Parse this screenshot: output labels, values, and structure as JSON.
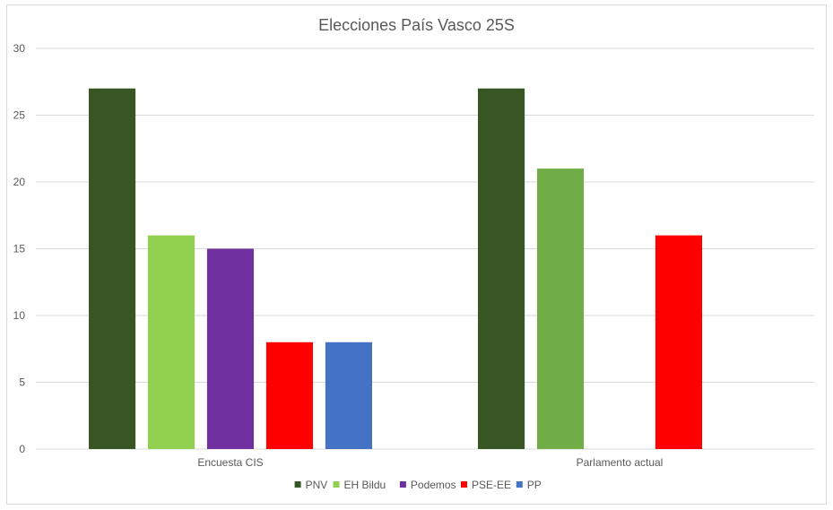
{
  "chart_data": {
    "type": "bar",
    "title": "Elecciones País Vasco 25S",
    "categories": [
      "Encuesta CIS",
      "Parlamento actual"
    ],
    "series": [
      {
        "name": "PNV",
        "color": "#375623",
        "values": [
          27,
          27
        ]
      },
      {
        "name": "EH Bildu",
        "color": "#92d050",
        "values": [
          16,
          null
        ]
      },
      {
        "name": "Podemos",
        "color": "#7030a0",
        "values": [
          15,
          null
        ]
      },
      {
        "name": "PSE-EE",
        "color": "#ff0000",
        "values": [
          8,
          16
        ]
      },
      {
        "name": "PP",
        "color": "#4472c4",
        "values": [
          8,
          null
        ]
      }
    ],
    "overrides": [
      {
        "series": "EH Bildu",
        "category": "Parlamento actual",
        "value": 21,
        "color": "#70ad47"
      }
    ],
    "ylim": [
      0,
      30
    ],
    "yticks": [
      "0",
      "5",
      "10",
      "15",
      "20",
      "25",
      "30"
    ],
    "grid": true,
    "legend": "bottom"
  }
}
